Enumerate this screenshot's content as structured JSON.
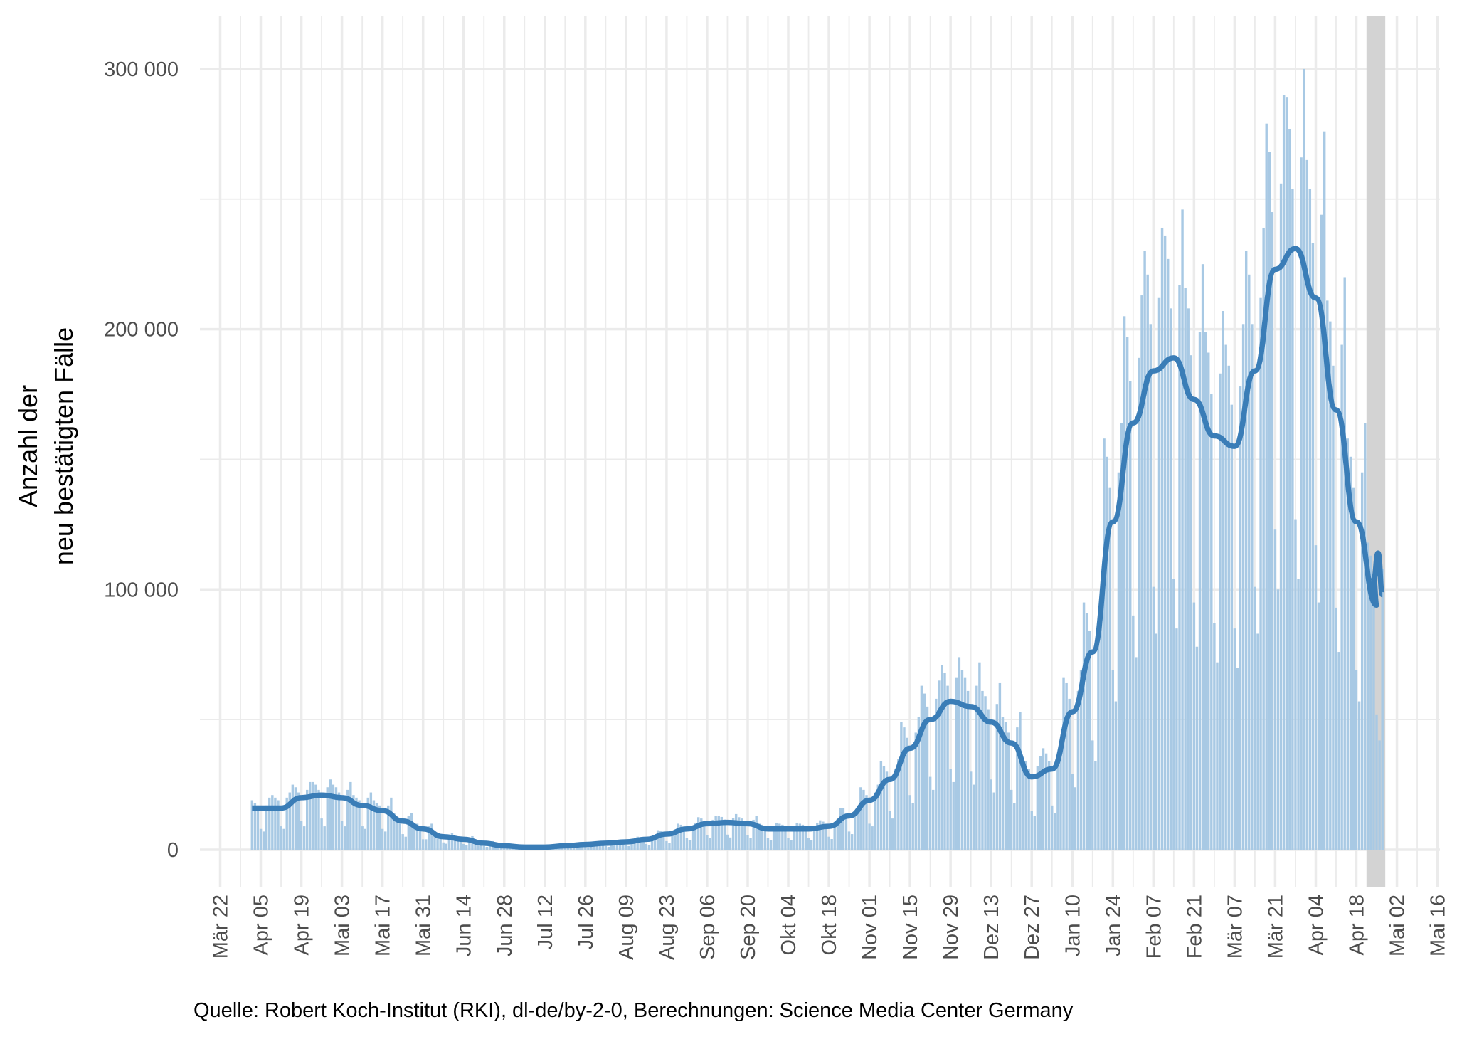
{
  "chart_data": {
    "type": "bar",
    "title": "",
    "xlabel": "",
    "ylabel_lines": [
      "Anzahl der",
      "neu bestätigten Fälle"
    ],
    "ylim": [
      0,
      320000
    ],
    "y_ticks": [
      0,
      100000,
      200000,
      300000
    ],
    "y_tick_labels": [
      "0",
      "100 000",
      "200 000",
      "300 000"
    ],
    "x_range_dates": [
      "2020-03-16",
      "2021-05-20"
    ],
    "x_tick_labels": [
      "Mär 22",
      "Apr 05",
      "Apr 19",
      "Mai 03",
      "Mai 17",
      "Mai 31",
      "Jun 14",
      "Jun 28",
      "Jul 12",
      "Jul 26",
      "Aug 09",
      "Aug 23",
      "Sep 06",
      "Sep 20",
      "Okt 04",
      "Okt 18",
      "Nov 01",
      "Nov 15",
      "Nov 29",
      "Dez 13",
      "Dez 27",
      "Jan 10",
      "Jan 24",
      "Feb 07",
      "Feb 21",
      "Mär 07",
      "Mär 21",
      "Apr 04",
      "Apr 18",
      "Mai 02",
      "Mai 16"
    ],
    "x_tick_interval_days": 14,
    "first_tick_date": "2020-03-22",
    "bars_start_date": "2020-04-02",
    "bars_unit": 1000,
    "bars_daily_values_thousands": [
      19,
      18,
      17,
      8,
      7,
      17,
      20,
      21,
      20,
      19,
      9,
      8,
      20,
      22,
      25,
      24,
      22,
      11,
      9,
      23,
      26,
      26,
      25,
      23,
      12,
      9,
      24,
      27,
      25,
      24,
      22,
      11,
      9,
      23,
      26,
      21,
      20,
      19,
      9,
      8,
      20,
      22,
      19,
      18,
      17,
      8,
      7,
      17,
      20,
      14,
      13,
      12,
      6,
      5,
      13,
      14,
      10,
      10,
      9,
      4,
      4,
      9,
      10,
      6,
      6,
      5.5,
      2.8,
      2.3,
      5.8,
      6.5,
      5,
      4.8,
      4.4,
      2.2,
      1.8,
      4.6,
      5.2,
      3.1,
      3,
      2.8,
      1.4,
      1.1,
      2.9,
      3.3,
      1.9,
      1.8,
      1.7,
      0.8,
      0.7,
      1.7,
      2,
      1.3,
      1.2,
      1.1,
      0.6,
      0.5,
      1.2,
      1.3,
      1.3,
      1.2,
      1.1,
      0.6,
      0.5,
      1.2,
      1.3,
      1.9,
      1.8,
      1.7,
      0.8,
      0.7,
      1.7,
      2,
      2.5,
      2.4,
      2.2,
      1.1,
      0.9,
      2.3,
      2.6,
      3.1,
      3,
      2.8,
      1.4,
      1.1,
      2.9,
      3.3,
      3.8,
      3.6,
      3.3,
      1.7,
      1.4,
      3.5,
      3.9,
      5,
      4.8,
      4.4,
      2.2,
      1.8,
      4.6,
      5.2,
      7.5,
      7.2,
      6.6,
      3.3,
      2.7,
      6.9,
      7.8,
      10,
      9.6,
      8.8,
      4.4,
      3.6,
      9.2,
      10.4,
      12.5,
      12,
      11,
      5.5,
      4.5,
      11.5,
      13,
      13,
      12.6,
      11.6,
      5.8,
      4.7,
      12.1,
      13.7,
      12.5,
      12,
      11,
      5.5,
      4.5,
      11.5,
      13,
      10,
      9.6,
      8.8,
      4.4,
      3.6,
      9.2,
      10.4,
      10,
      9.6,
      8.8,
      4.4,
      3.6,
      9.2,
      10.4,
      10,
      9.6,
      8.8,
      4.4,
      3.6,
      9.2,
      10.4,
      11.3,
      10.8,
      9.9,
      5,
      4.1,
      10.4,
      11.7,
      16,
      16,
      14,
      7,
      6,
      15,
      17,
      24,
      23,
      21,
      10,
      9,
      22,
      25,
      34,
      32,
      30,
      15,
      12,
      31,
      35,
      49,
      47,
      43,
      21,
      18,
      45,
      51,
      63,
      60,
      55,
      28,
      23,
      58,
      65,
      71,
      68,
      63,
      31,
      26,
      66,
      74,
      69,
      66,
      61,
      30,
      25,
      63,
      72,
      61,
      59,
      54,
      27,
      22,
      56,
      64,
      51,
      49,
      45,
      23,
      18,
      47,
      53,
      35,
      34,
      31,
      15,
      13,
      32,
      36,
      39,
      37,
      34,
      17,
      14,
      36,
      40,
      66,
      64,
      58,
      29,
      24,
      61,
      69,
      95,
      91,
      84,
      42,
      34,
      87,
      99,
      158,
      151,
      139,
      69,
      57,
      145,
      164,
      205,
      197,
      180,
      90,
      74,
      189,
      213,
      230,
      221,
      202,
      101,
      83,
      212,
      239,
      236,
      227,
      208,
      104,
      85,
      217,
      246,
      216,
      208,
      190,
      95,
      78,
      199,
      225,
      199,
      191,
      175,
      87,
      72,
      183,
      207,
      194,
      186,
      171,
      85,
      70,
      178,
      202,
      230,
      221,
      202,
      101,
      83,
      212,
      239,
      279,
      268,
      245,
      123,
      100,
      256,
      290,
      289,
      277,
      254,
      127,
      104,
      266,
      300,
      265,
      254,
      233,
      117,
      95,
      244,
      276,
      211,
      203,
      186,
      93,
      76,
      194,
      220,
      158,
      151,
      139,
      69,
      57,
      145,
      164,
      118,
      113,
      103,
      52,
      42,
      108
    ],
    "trend_label": "7-Tage-Mittel",
    "trend_weekly_values_thousands": [
      16,
      16,
      20,
      21,
      20,
      17,
      15,
      11,
      8,
      5,
      4,
      2.5,
      1.5,
      1,
      1,
      1.5,
      2,
      2.5,
      3,
      4,
      6,
      8,
      10,
      10.5,
      10,
      8,
      8,
      8,
      9,
      13,
      19,
      27,
      39,
      50,
      57,
      55,
      49,
      41,
      28,
      31,
      53,
      76,
      126,
      164,
      184,
      189,
      173,
      159,
      155,
      184,
      223,
      231,
      212,
      169,
      126,
      94
    ],
    "trend_final_values_thousands": [
      104,
      114,
      98
    ],
    "incomplete_period_dates": [
      "2021-04-22",
      "2021-04-27"
    ],
    "grid": true,
    "legend": "none",
    "colors": {
      "bars": "#a8c9e4",
      "trend": "#3a7db7",
      "incomplete_band": "#d3d3d3",
      "grid": "#ebebeb"
    }
  },
  "caption": "Quelle: Robert Koch-Institut (RKI), dl-de/by-2-0, Berechnungen: Science Media Center Germany"
}
